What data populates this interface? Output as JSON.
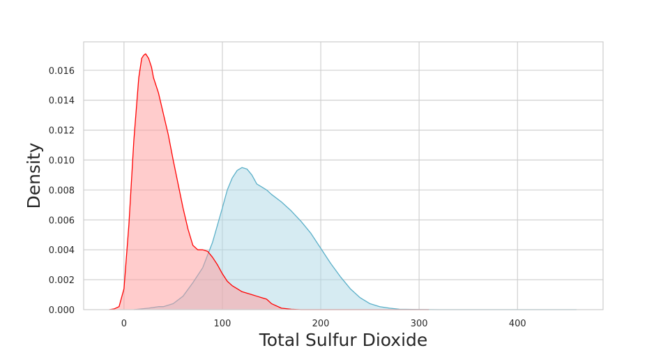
{
  "chart_data": {
    "type": "area",
    "xlabel": "Total Sulfur Dioxide",
    "ylabel": "Density",
    "xlim": [
      -41,
      487
    ],
    "ylim": [
      0,
      0.0179
    ],
    "xticks": [
      0,
      100,
      200,
      300,
      400
    ],
    "yticks": [
      0.0,
      0.002,
      0.004,
      0.006,
      0.008,
      0.01,
      0.012,
      0.014,
      0.016
    ],
    "xtick_labels": [
      "0",
      "100",
      "200",
      "300",
      "400"
    ],
    "ytick_labels": [
      "0.000",
      "0.002",
      "0.004",
      "0.006",
      "0.008",
      "0.010",
      "0.012",
      "0.014",
      "0.016"
    ],
    "grid": true,
    "series": [
      {
        "color": "#5aafc8",
        "fill": "#add8e6",
        "x": [
          10,
          25,
          35,
          40,
          50,
          60,
          70,
          80,
          90,
          100,
          105,
          110,
          115,
          120,
          125,
          130,
          135,
          140,
          145,
          150,
          160,
          170,
          180,
          190,
          200,
          210,
          220,
          230,
          240,
          250,
          260,
          270,
          280,
          300,
          320,
          350,
          400,
          450,
          460
        ],
        "y": [
          0.0,
          0.0001,
          0.0002,
          0.0002,
          0.0004,
          0.0009,
          0.0018,
          0.0028,
          0.0045,
          0.0068,
          0.008,
          0.0088,
          0.0093,
          0.0095,
          0.0094,
          0.009,
          0.0084,
          0.0082,
          0.008,
          0.0077,
          0.0072,
          0.0066,
          0.0059,
          0.0051,
          0.0041,
          0.0031,
          0.0022,
          0.0014,
          0.0008,
          0.0004,
          0.0002,
          0.0001,
          3e-05,
          1e-05,
          0.0,
          0.0,
          0.0,
          0.0,
          0.0
        ]
      },
      {
        "color": "#ff0000",
        "fill": "#ff9999",
        "x": [
          -15,
          -10,
          -5,
          0,
          5,
          10,
          15,
          18,
          20,
          22,
          25,
          28,
          30,
          35,
          40,
          45,
          50,
          55,
          60,
          65,
          70,
          75,
          80,
          85,
          90,
          95,
          100,
          105,
          110,
          115,
          120,
          125,
          130,
          135,
          140,
          145,
          150,
          160,
          170,
          180,
          200,
          250,
          300,
          310
        ],
        "y": [
          0.0,
          5e-05,
          0.0002,
          0.0014,
          0.0057,
          0.0113,
          0.0155,
          0.0168,
          0.017,
          0.0171,
          0.0168,
          0.0162,
          0.0155,
          0.0145,
          0.0131,
          0.0117,
          0.01,
          0.0084,
          0.0068,
          0.0054,
          0.0043,
          0.004,
          0.004,
          0.0039,
          0.0035,
          0.003,
          0.0024,
          0.0019,
          0.0016,
          0.0014,
          0.0012,
          0.0011,
          0.001,
          0.0009,
          0.0008,
          0.0007,
          0.0004,
          0.0001,
          3e-05,
          0.0,
          0.0,
          0.0,
          0.0,
          0.0
        ]
      }
    ]
  }
}
